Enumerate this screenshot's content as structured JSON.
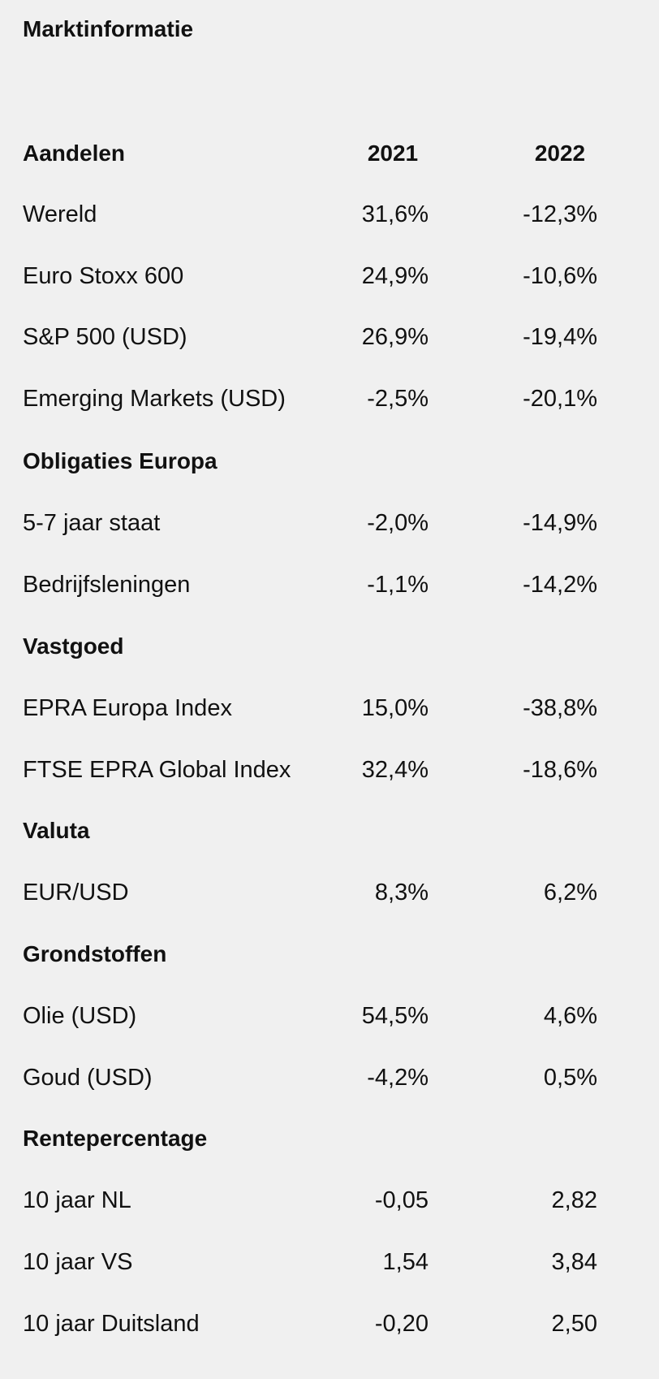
{
  "title": "Marktinformatie",
  "columns": [
    "Aandelen",
    "2021",
    "2022"
  ],
  "sections": {
    "aandelen": {
      "rows": [
        {
          "label": "Wereld",
          "y2021": "31,6%",
          "y2022": "-12,3%"
        },
        {
          "label": "Euro Stoxx 600",
          "y2021": "24,9%",
          "y2022": "-10,6%"
        },
        {
          "label": "S&P 500 (USD)",
          "y2021": "26,9%",
          "y2022": "-19,4%"
        },
        {
          "label": "Emerging Markets (USD)",
          "y2021": "-2,5%",
          "y2022": "-20,1%"
        }
      ]
    },
    "obligaties": {
      "heading": "Obligaties Europa",
      "rows": [
        {
          "label": "5-7 jaar staat",
          "y2021": "-2,0%",
          "y2022": "-14,9%"
        },
        {
          "label": "Bedrijfsleningen",
          "y2021": "-1,1%",
          "y2022": "-14,2%"
        }
      ]
    },
    "vastgoed": {
      "heading": "Vastgoed",
      "rows": [
        {
          "label": "EPRA Europa Index",
          "y2021": "15,0%",
          "y2022": "-38,8%"
        },
        {
          "label": "FTSE EPRA Global Index",
          "y2021": "32,4%",
          "y2022": "-18,6%"
        }
      ]
    },
    "valuta": {
      "heading": "Valuta",
      "rows": [
        {
          "label": "EUR/USD",
          "y2021": "8,3%",
          "y2022": "6,2%"
        }
      ]
    },
    "grondstoffen": {
      "heading": "Grondstoffen",
      "rows": [
        {
          "label": "Olie (USD)",
          "y2021": "54,5%",
          "y2022": "4,6%"
        },
        {
          "label": "Goud (USD)",
          "y2021": "-4,2%",
          "y2022": "0,5%"
        }
      ]
    },
    "rente": {
      "heading": "Rentepercentage",
      "rows": [
        {
          "label": "10 jaar NL",
          "y2021": "-0,05",
          "y2022": "2,82"
        },
        {
          "label": "10 jaar VS",
          "y2021": "1,54",
          "y2022": "3,84"
        },
        {
          "label": "10 jaar Duitsland",
          "y2021": "-0,20",
          "y2022": "2,50"
        }
      ]
    }
  }
}
